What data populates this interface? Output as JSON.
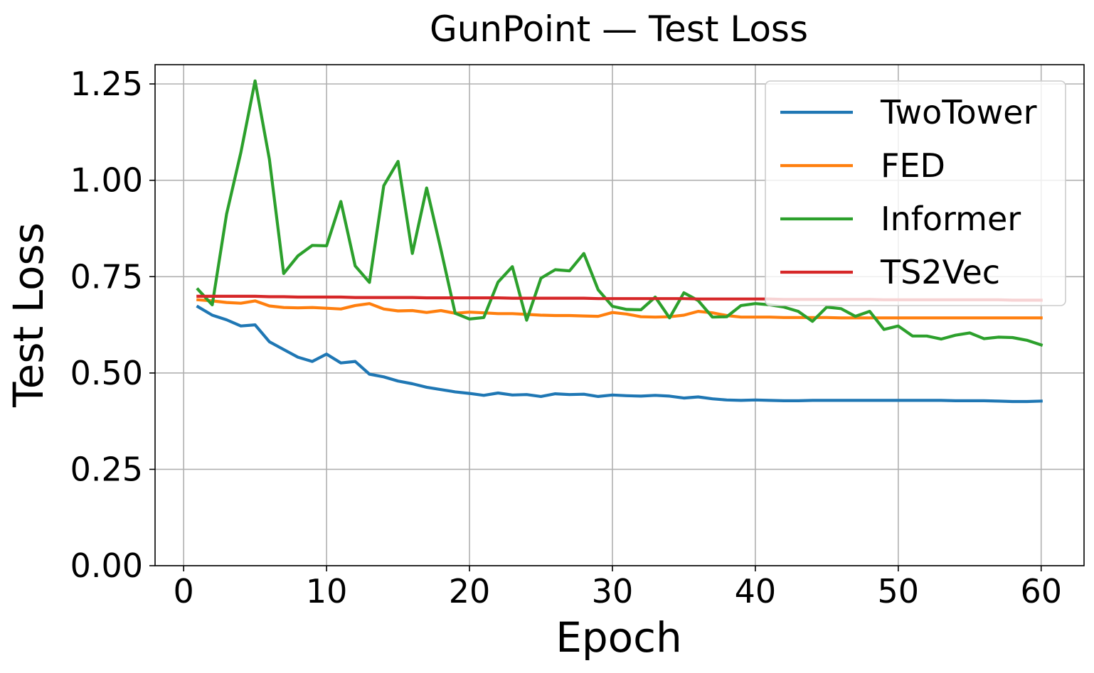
{
  "chart_data": {
    "type": "line",
    "title": "GunPoint — Test Loss",
    "xlabel": "Epoch",
    "ylabel": "Test Loss",
    "xlim": [
      -2,
      63
    ],
    "ylim": [
      0,
      1.3
    ],
    "x_ticks": [
      0,
      10,
      20,
      30,
      40,
      50,
      60
    ],
    "x_tick_labels": [
      "0",
      "10",
      "20",
      "30",
      "40",
      "50",
      "60"
    ],
    "y_ticks": [
      0,
      0.25,
      0.5,
      0.75,
      1.0,
      1.25
    ],
    "y_tick_labels": [
      "0.00",
      "0.25",
      "0.50",
      "0.75",
      "1.00",
      "1.25"
    ],
    "grid": true,
    "legend_position": "top-right",
    "x": [
      1,
      2,
      3,
      4,
      5,
      6,
      7,
      8,
      9,
      10,
      11,
      12,
      13,
      14,
      15,
      16,
      17,
      18,
      19,
      20,
      21,
      22,
      23,
      24,
      25,
      26,
      27,
      28,
      29,
      30,
      31,
      32,
      33,
      34,
      35,
      36,
      37,
      38,
      39,
      40,
      41,
      42,
      43,
      44,
      45,
      46,
      47,
      48,
      49,
      50,
      51,
      52,
      53,
      54,
      55,
      56,
      57,
      58,
      59,
      60
    ],
    "series": [
      {
        "name": "TwoTower",
        "color": "#1f77b4",
        "values": [
          0.672,
          0.65,
          0.638,
          0.622,
          0.625,
          0.581,
          0.561,
          0.541,
          0.53,
          0.549,
          0.526,
          0.53,
          0.497,
          0.49,
          0.479,
          0.472,
          0.463,
          0.457,
          0.451,
          0.447,
          0.442,
          0.448,
          0.443,
          0.444,
          0.439,
          0.446,
          0.444,
          0.445,
          0.439,
          0.443,
          0.441,
          0.44,
          0.442,
          0.44,
          0.435,
          0.438,
          0.433,
          0.43,
          0.429,
          0.43,
          0.429,
          0.428,
          0.428,
          0.429,
          0.429,
          0.429,
          0.429,
          0.429,
          0.429,
          0.429,
          0.429,
          0.429,
          0.429,
          0.428,
          0.428,
          0.428,
          0.427,
          0.426,
          0.426,
          0.427
        ]
      },
      {
        "name": "FED",
        "color": "#ff7f0e",
        "values": [
          0.69,
          0.687,
          0.683,
          0.681,
          0.687,
          0.674,
          0.67,
          0.669,
          0.67,
          0.668,
          0.666,
          0.675,
          0.68,
          0.666,
          0.661,
          0.662,
          0.657,
          0.662,
          0.655,
          0.658,
          0.656,
          0.654,
          0.654,
          0.652,
          0.65,
          0.649,
          0.649,
          0.648,
          0.647,
          0.657,
          0.653,
          0.646,
          0.645,
          0.646,
          0.65,
          0.66,
          0.656,
          0.649,
          0.645,
          0.645,
          0.645,
          0.644,
          0.644,
          0.644,
          0.644,
          0.643,
          0.643,
          0.643,
          0.643,
          0.643,
          0.643,
          0.643,
          0.643,
          0.643,
          0.643,
          0.643,
          0.643,
          0.643,
          0.643,
          0.643
        ]
      },
      {
        "name": "Informer",
        "color": "#2ca02c",
        "values": [
          0.717,
          0.677,
          0.912,
          1.072,
          1.258,
          1.055,
          0.758,
          0.804,
          0.831,
          0.83,
          0.945,
          0.778,
          0.735,
          0.986,
          1.049,
          0.81,
          0.98,
          0.821,
          0.655,
          0.64,
          0.644,
          0.736,
          0.776,
          0.637,
          0.746,
          0.768,
          0.765,
          0.81,
          0.716,
          0.673,
          0.665,
          0.664,
          0.697,
          0.643,
          0.708,
          0.688,
          0.645,
          0.646,
          0.675,
          0.68,
          0.677,
          0.671,
          0.66,
          0.634,
          0.671,
          0.667,
          0.647,
          0.66,
          0.613,
          0.622,
          0.596,
          0.596,
          0.588,
          0.598,
          0.604,
          0.589,
          0.593,
          0.592,
          0.585,
          0.573
        ]
      },
      {
        "name": "TS2Vec",
        "color": "#d62728",
        "values": [
          0.699,
          0.699,
          0.699,
          0.699,
          0.699,
          0.698,
          0.698,
          0.697,
          0.697,
          0.697,
          0.697,
          0.696,
          0.696,
          0.696,
          0.696,
          0.696,
          0.695,
          0.695,
          0.695,
          0.695,
          0.695,
          0.695,
          0.694,
          0.694,
          0.694,
          0.694,
          0.694,
          0.694,
          0.693,
          0.693,
          0.693,
          0.693,
          0.693,
          0.693,
          0.693,
          0.692,
          0.692,
          0.692,
          0.692,
          0.692,
          0.692,
          0.691,
          0.691,
          0.691,
          0.691,
          0.691,
          0.691,
          0.691,
          0.69,
          0.69,
          0.69,
          0.69,
          0.69,
          0.69,
          0.69,
          0.69,
          0.69,
          0.689,
          0.689,
          0.689
        ]
      }
    ]
  }
}
